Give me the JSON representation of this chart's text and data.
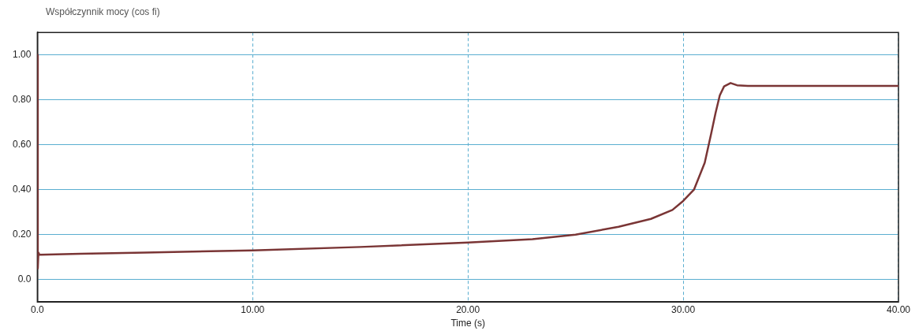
{
  "chart_data": {
    "type": "line",
    "ylabel": "Współczynnik mocy (cos fi)",
    "xlabel": "Time (s)",
    "x": [
      0,
      0.02,
      0.05,
      0.1,
      2,
      5,
      10,
      15,
      20,
      23,
      25,
      27,
      28.5,
      29.5,
      30,
      30.5,
      31,
      31.3,
      31.5,
      31.7,
      31.9,
      32.2,
      32.5,
      33,
      40
    ],
    "series": [
      {
        "color": "#7a3535",
        "values": [
          1.0,
          0.05,
          0.12,
          0.11,
          0.115,
          0.12,
          0.13,
          0.145,
          0.165,
          0.18,
          0.2,
          0.235,
          0.27,
          0.31,
          0.35,
          0.4,
          0.52,
          0.65,
          0.74,
          0.82,
          0.86,
          0.875,
          0.865,
          0.862,
          0.862
        ]
      }
    ],
    "xlim": [
      0,
      40
    ],
    "ylim": [
      -0.1,
      1.1
    ],
    "xticks": [
      {
        "value": 0,
        "label": "0.0"
      },
      {
        "value": 10,
        "label": "10.00"
      },
      {
        "value": 20,
        "label": "20.00"
      },
      {
        "value": 30,
        "label": "30.00"
      },
      {
        "value": 40,
        "label": "40.00"
      }
    ],
    "yticks": [
      {
        "value": 0,
        "label": "0.0"
      },
      {
        "value": 0.2,
        "label": "0.20"
      },
      {
        "value": 0.4,
        "label": "0.40"
      },
      {
        "value": 0.6,
        "label": "0.60"
      },
      {
        "value": 0.8,
        "label": "0.80"
      },
      {
        "value": 1,
        "label": "1.00"
      }
    ],
    "grid": true,
    "legend": false,
    "marker": "none",
    "line_style": "solid"
  }
}
